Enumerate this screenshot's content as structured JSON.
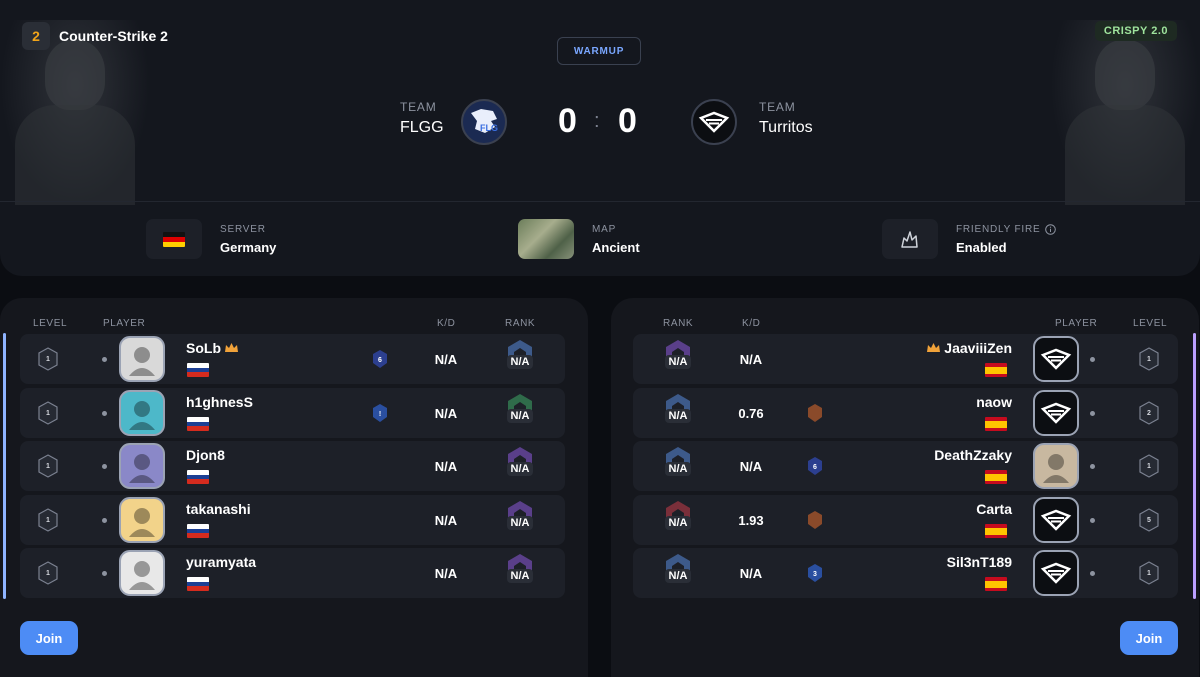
{
  "app": {
    "title": "Counter-Strike 2",
    "logo_text": "2",
    "badge": "CRISPY 2.0"
  },
  "match": {
    "status": "WARMUP",
    "team_label": "TEAM",
    "team_left": {
      "name": "FLGG",
      "score": "0",
      "logo_text": "FLG"
    },
    "team_right": {
      "name": "Turritos",
      "score": "0"
    },
    "separator": ":"
  },
  "info": {
    "server": {
      "label": "SERVER",
      "value": "Germany"
    },
    "map": {
      "label": "MAP",
      "value": "Ancient"
    },
    "friendly_fire": {
      "label": "FRIENDLY FIRE",
      "value": "Enabled"
    }
  },
  "columns": {
    "level": "LEVEL",
    "player": "PLAYER",
    "kd": "K/D",
    "rank": "RANK"
  },
  "colors": {
    "accent": "#4d8cf5",
    "de_black": "#111111",
    "de_red": "#dd0000",
    "de_gold": "#ffce00",
    "ru_white": "#ffffff",
    "ru_blue": "#1c3f94",
    "ru_red": "#d52b1e",
    "es_red": "#c60b1e",
    "es_yellow": "#ffc400"
  },
  "left_players": [
    {
      "level": "1",
      "name": "SoLb",
      "crown": true,
      "kd": "N/A",
      "rank": "N/A",
      "medal": "6"
    },
    {
      "level": "1",
      "name": "h1ghnesS",
      "crown": false,
      "kd": "N/A",
      "rank": "N/A",
      "medal": "!"
    },
    {
      "level": "1",
      "name": "Djon8",
      "crown": false,
      "kd": "N/A",
      "rank": "N/A",
      "medal": ""
    },
    {
      "level": "1",
      "name": "takanashi",
      "crown": false,
      "kd": "N/A",
      "rank": "N/A",
      "medal": ""
    },
    {
      "level": "1",
      "name": "yuramyata",
      "crown": false,
      "kd": "N/A",
      "rank": "N/A",
      "medal": ""
    }
  ],
  "right_players": [
    {
      "level": "1",
      "name": "JaaviiiZen",
      "crown": true,
      "kd": "N/A",
      "rank": "N/A",
      "medal": ""
    },
    {
      "level": "2",
      "name": "naow",
      "crown": false,
      "kd": "0.76",
      "rank": "N/A",
      "medal": ""
    },
    {
      "level": "1",
      "name": "DeathZzaky",
      "crown": false,
      "kd": "N/A",
      "rank": "N/A",
      "medal": "6"
    },
    {
      "level": "5",
      "name": "Carta",
      "crown": false,
      "kd": "1.93",
      "rank": "N/A",
      "medal": ""
    },
    {
      "level": "1",
      "name": "Sil3nT189",
      "crown": false,
      "kd": "N/A",
      "rank": "N/A",
      "medal": "3"
    }
  ],
  "buttons": {
    "join_left": "Join",
    "join_right": "Join"
  }
}
